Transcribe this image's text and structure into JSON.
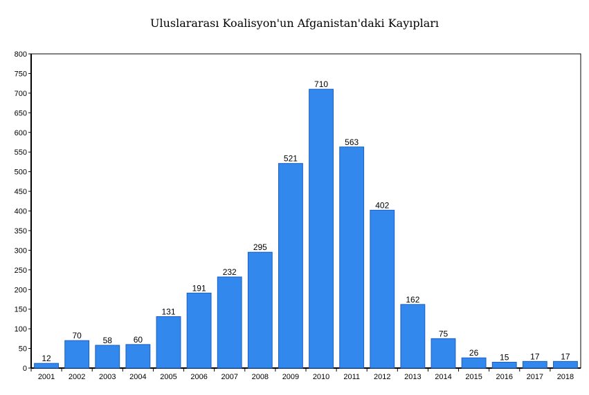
{
  "chart_data": {
    "type": "bar",
    "title": "Uluslararası Koalisyon'un Afganistan'daki Kayıpları",
    "xlabel": "",
    "ylabel": "",
    "categories": [
      "2001",
      "2002",
      "2003",
      "2004",
      "2005",
      "2006",
      "2007",
      "2008",
      "2009",
      "2010",
      "2011",
      "2012",
      "2013",
      "2014",
      "2015",
      "2016",
      "2017",
      "2018"
    ],
    "values": [
      12,
      70,
      58,
      60,
      131,
      191,
      232,
      295,
      521,
      710,
      563,
      402,
      162,
      75,
      26,
      15,
      17,
      17
    ],
    "ylim": [
      0,
      800
    ],
    "yticks": [
      0,
      50,
      100,
      150,
      200,
      250,
      300,
      350,
      400,
      450,
      500,
      550,
      600,
      650,
      700,
      750,
      800
    ],
    "grid": false,
    "legend": "none",
    "bar_color": "#3388ee",
    "bar_edge_color": "#1a5fbf"
  }
}
